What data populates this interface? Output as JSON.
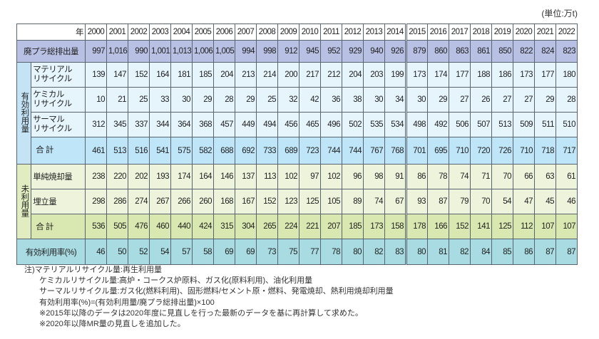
{
  "unit_label": "(単位:万t)",
  "header": {
    "year_label": "年",
    "years": [
      "2000",
      "2001",
      "2002",
      "2003",
      "2004",
      "2005",
      "2006",
      "2007",
      "2008",
      "2009",
      "2010",
      "2011",
      "2012",
      "2013",
      "2014",
      "2015",
      "2016",
      "2017",
      "2018",
      "2019",
      "2020",
      "2021",
      "2022"
    ]
  },
  "rows": {
    "total_emission": {
      "label": "廃プラ総排出量",
      "values": [
        "997",
        "1,016",
        "990",
        "1,001",
        "1,013",
        "1,006",
        "1,005",
        "994",
        "998",
        "912",
        "945",
        "952",
        "929",
        "940",
        "926",
        "879",
        "860",
        "863",
        "861",
        "850",
        "822",
        "824",
        "823"
      ]
    },
    "effective_group_label": "有効利用量",
    "material": {
      "label_line1": "マテリアル",
      "label_line2": "リサイクル",
      "values": [
        "139",
        "147",
        "152",
        "164",
        "181",
        "185",
        "204",
        "213",
        "214",
        "200",
        "217",
        "212",
        "204",
        "203",
        "199",
        "173",
        "174",
        "177",
        "188",
        "186",
        "173",
        "177",
        "180"
      ]
    },
    "chemical": {
      "label_line1": "ケミカル",
      "label_line2": "リサイクル",
      "values": [
        "10",
        "21",
        "25",
        "33",
        "30",
        "29",
        "28",
        "29",
        "25",
        "32",
        "42",
        "36",
        "38",
        "30",
        "34",
        "30",
        "29",
        "27",
        "26",
        "27",
        "27",
        "29",
        "28"
      ]
    },
    "thermal": {
      "label_line1": "サーマル",
      "label_line2": "リサイクル",
      "values": [
        "312",
        "345",
        "337",
        "344",
        "364",
        "368",
        "457",
        "449",
        "494",
        "456",
        "465",
        "496",
        "502",
        "535",
        "534",
        "498",
        "492",
        "506",
        "507",
        "513",
        "509",
        "511",
        "510"
      ]
    },
    "effective_total": {
      "label": "合 計",
      "values": [
        "461",
        "513",
        "516",
        "541",
        "575",
        "582",
        "688",
        "692",
        "733",
        "689",
        "723",
        "744",
        "744",
        "767",
        "768",
        "701",
        "695",
        "710",
        "720",
        "726",
        "710",
        "718",
        "717"
      ]
    },
    "unused_group_label": "未利用量",
    "incineration": {
      "label": "単純焼却量",
      "values": [
        "238",
        "220",
        "202",
        "193",
        "174",
        "164",
        "146",
        "137",
        "113",
        "102",
        "97",
        "102",
        "96",
        "98",
        "91",
        "86",
        "78",
        "74",
        "71",
        "70",
        "66",
        "63",
        "61"
      ]
    },
    "landfill": {
      "label": "埋立量",
      "values": [
        "298",
        "286",
        "274",
        "267",
        "266",
        "260",
        "168",
        "167",
        "152",
        "123",
        "125",
        "105",
        "89",
        "74",
        "67",
        "93",
        "87",
        "79",
        "70",
        "54",
        "47",
        "45",
        "46"
      ]
    },
    "unused_total": {
      "label": "合 計",
      "values": [
        "536",
        "505",
        "476",
        "460",
        "440",
        "424",
        "315",
        "304",
        "265",
        "224",
        "221",
        "207",
        "185",
        "173",
        "158",
        "178",
        "166",
        "152",
        "141",
        "125",
        "112",
        "107",
        "107"
      ]
    },
    "rate": {
      "label": "有効利用率(%)",
      "values": [
        "46",
        "50",
        "52",
        "54",
        "57",
        "58",
        "69",
        "69",
        "73",
        "75",
        "77",
        "78",
        "80",
        "82",
        "83",
        "80",
        "81",
        "82",
        "84",
        "85",
        "86",
        "87",
        "87"
      ]
    }
  },
  "notes": [
    "注)マテリアルリサイクル量:再生利用量",
    "ケミカルリサイクル量:高炉・コークス炉原料、ガス化(原料利用)、油化利用量",
    "サーマルリサイクル量:ガス化(燃料利用)、固形燃料/セメント原・燃料、発電焼却、熱利用焼却利用量",
    "有効利用率(%)=(有効利用量/廃プラ総排出量)×100",
    "※2015年以降のデータは2020年度に見直しを行った最新のデータを基に再計算して求めた。",
    "※2020年以降MR量の見直しを追加した。"
  ],
  "colors": {
    "header_bg": "#ffffff",
    "total_emission_bg": "#b8c0e4",
    "effective_bg": "#e6f4fc",
    "effective_total_bg": "#bfe5f8",
    "unused_bg": "#eef4dc",
    "unused_total_bg": "#d9e8b0",
    "rate_bg": "#a9dce2",
    "border": "#5a6470"
  }
}
